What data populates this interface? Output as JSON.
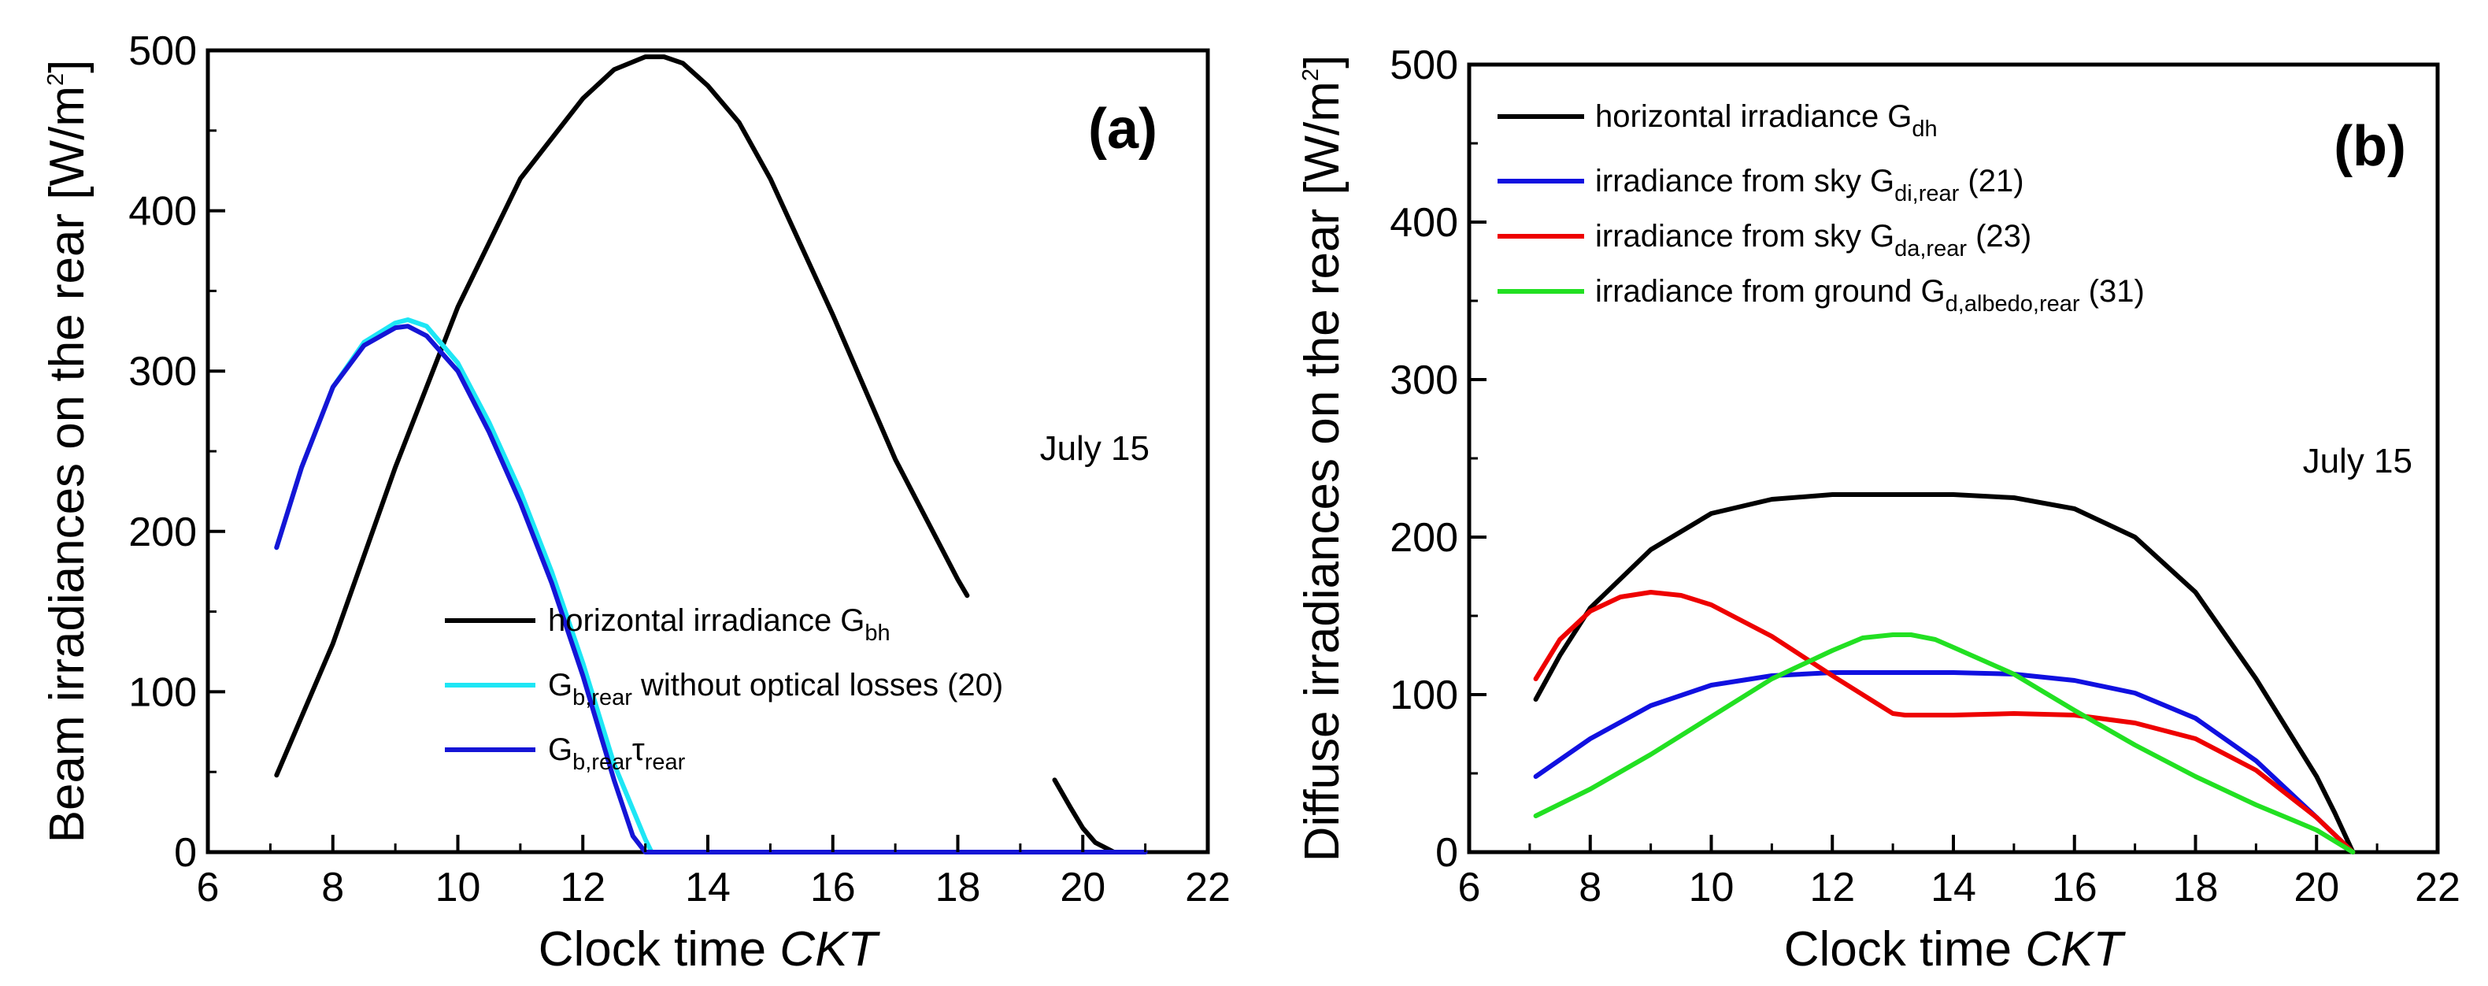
{
  "chart_data": [
    {
      "type": "line",
      "panel_label": "(a)",
      "annotation": "July 15",
      "xlabel": {
        "main": "Clock time ",
        "italic": "CKT"
      },
      "ylabel": {
        "main": "Beam irradiances on the rear [W/m",
        "sup": "2",
        "close": "]"
      },
      "xlim": [
        6,
        22
      ],
      "ylim": [
        0,
        500
      ],
      "xticks": [
        6,
        8,
        10,
        12,
        14,
        16,
        18,
        20,
        22
      ],
      "yticks": [
        0,
        100,
        200,
        300,
        400,
        500
      ],
      "legend_position": "bottom-center",
      "series": [
        {
          "name": "horizontal irradiance G_bh",
          "legend": {
            "pre": "horizontal irradiance G",
            "sub": "bh"
          },
          "color": "#000000",
          "x": [
            7.1,
            8,
            9,
            10,
            11,
            12,
            12.5,
            13,
            13.3,
            13.6,
            14,
            14.5,
            15,
            16,
            17,
            18,
            18.15
          ],
          "y": [
            48,
            130,
            240,
            340,
            420,
            470,
            488,
            496,
            496,
            492,
            478,
            455,
            420,
            335,
            245,
            170,
            160
          ]
        },
        {
          "name": "horizontal irradiance G_bh (late segment)",
          "legend": null,
          "color": "#000000",
          "x": [
            19.55,
            19.8,
            20.0,
            20.2,
            20.5,
            21.0
          ],
          "y": [
            45,
            28,
            15,
            6,
            0,
            0
          ]
        },
        {
          "name": "G_b,rear without optical losses (20)",
          "legend": {
            "pre": "G",
            "sub": "b,rear",
            "post": " without optical losses (20)"
          },
          "color": "#1ee6f5",
          "x": [
            7.1,
            7.5,
            8,
            8.5,
            9,
            9.2,
            9.5,
            10,
            10.5,
            11,
            11.5,
            12,
            12.5,
            13,
            13.1,
            13.2,
            14,
            16,
            18,
            20
          ],
          "y": [
            190,
            240,
            290,
            318,
            330,
            332,
            328,
            305,
            268,
            225,
            175,
            118,
            55,
            8,
            0,
            0,
            0,
            0,
            0,
            0
          ]
        },
        {
          "name": "G_b,rear tau_rear",
          "legend": {
            "pre": "G",
            "sub": "b,rear",
            "greek": "τ",
            "sub2": "rear"
          },
          "color": "#1515d6",
          "x": [
            7.1,
            7.5,
            8,
            8.5,
            9,
            9.2,
            9.5,
            10,
            10.5,
            11,
            11.5,
            12,
            12.5,
            12.8,
            13.0,
            13.2,
            14,
            16,
            18,
            20,
            21
          ],
          "y": [
            190,
            240,
            290,
            316,
            327,
            328,
            322,
            300,
            262,
            218,
            168,
            110,
            45,
            10,
            0,
            0,
            0,
            0,
            0,
            0,
            0
          ]
        }
      ]
    },
    {
      "type": "line",
      "panel_label": "(b)",
      "annotation": "July 15",
      "xlabel": {
        "main": "Clock time ",
        "italic": "CKT"
      },
      "ylabel": {
        "main": "Diffuse irradiances on the rear [W/m",
        "sup": "2",
        "close": "]"
      },
      "xlim": [
        6,
        22
      ],
      "ylim": [
        0,
        500
      ],
      "xticks": [
        6,
        8,
        10,
        12,
        14,
        16,
        18,
        20,
        22
      ],
      "yticks": [
        0,
        100,
        200,
        300,
        400,
        500
      ],
      "legend_position": "top-left",
      "series": [
        {
          "name": "horizontal irradiance G_dh",
          "legend": {
            "pre": "horizontal irradiance G",
            "sub": "dh"
          },
          "color": "#000000",
          "x": [
            7.1,
            7.5,
            8,
            9,
            10,
            11,
            12,
            13,
            14,
            15,
            16,
            17,
            18,
            19,
            20,
            20.3,
            20.6
          ],
          "y": [
            97,
            125,
            155,
            192,
            215,
            224,
            227,
            227,
            227,
            225,
            218,
            200,
            165,
            110,
            48,
            25,
            0
          ]
        },
        {
          "name": "irradiance from sky G_di,rear (21)",
          "legend": {
            "pre": "irradiance from sky G",
            "sub": "di,rear",
            "post": " (21)"
          },
          "color": "#1010e0",
          "x": [
            7.1,
            8,
            9,
            10,
            11,
            12,
            13,
            14,
            15,
            16,
            17,
            18,
            19,
            20,
            20.6
          ],
          "y": [
            48,
            72,
            93,
            106,
            112,
            114,
            114,
            114,
            113,
            109,
            101,
            85,
            58,
            22,
            0
          ]
        },
        {
          "name": "irradiance from sky G_da,rear (23)",
          "legend": {
            "pre": "irradiance from sky G",
            "sub": "da,rear",
            "post": " (23)"
          },
          "color": "#ee0000",
          "x": [
            7.1,
            7.5,
            8,
            8.5,
            9,
            9.5,
            10,
            10.5,
            11,
            12,
            12.5,
            13,
            13.2,
            14,
            15,
            16,
            17,
            18,
            19,
            20,
            20.6
          ],
          "y": [
            110,
            135,
            153,
            162,
            165,
            163,
            157,
            147,
            137,
            112,
            100,
            88,
            87,
            87,
            88,
            87,
            82,
            72,
            52,
            22,
            0
          ]
        },
        {
          "name": "irradiance from ground G_d,albedo,rear (31)",
          "legend": {
            "pre": "irradiance from ground G",
            "sub": "d,albedo,rear",
            "post": " (31)"
          },
          "color": "#22e022",
          "x": [
            7.1,
            8,
            9,
            10,
            11,
            12,
            12.5,
            13,
            13.3,
            13.7,
            14,
            15,
            16,
            17,
            18,
            19,
            20,
            20.6
          ],
          "y": [
            23,
            40,
            62,
            86,
            110,
            128,
            136,
            138,
            138,
            135,
            130,
            113,
            90,
            68,
            48,
            30,
            14,
            0
          ]
        }
      ]
    }
  ]
}
